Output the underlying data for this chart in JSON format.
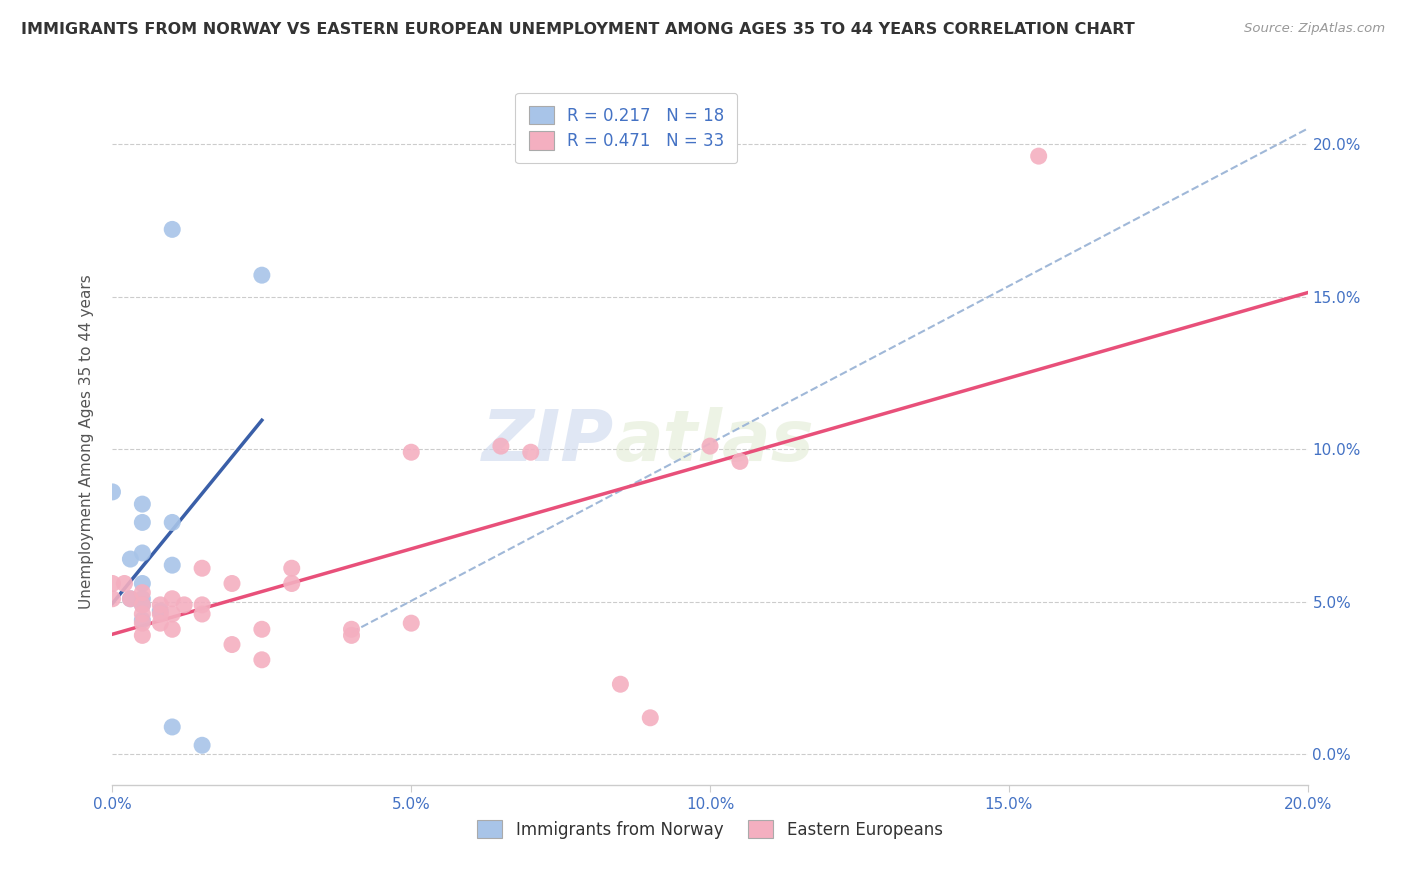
{
  "title": "IMMIGRANTS FROM NORWAY VS EASTERN EUROPEAN UNEMPLOYMENT AMONG AGES 35 TO 44 YEARS CORRELATION CHART",
  "source": "Source: ZipAtlas.com",
  "ylabel": "Unemployment Among Ages 35 to 44 years",
  "xlim": [
    0.0,
    0.2
  ],
  "ylim": [
    -0.01,
    0.215
  ],
  "xticks": [
    0.0,
    0.05,
    0.1,
    0.15,
    0.2
  ],
  "yticks": [
    0.0,
    0.05,
    0.1,
    0.15,
    0.2
  ],
  "watermark_zip": "ZIP",
  "watermark_atlas": "atlas",
  "norway_color": "#a8c4e8",
  "eastern_color": "#f4afc0",
  "norway_line_color": "#3a5fa8",
  "eastern_line_color": "#e8507a",
  "dashed_line_color": "#a0b8d8",
  "norway_points": [
    [
      0.01,
      0.172
    ],
    [
      0.025,
      0.157
    ],
    [
      0.0,
      0.086
    ],
    [
      0.005,
      0.082
    ],
    [
      0.005,
      0.076
    ],
    [
      0.01,
      0.076
    ],
    [
      0.005,
      0.066
    ],
    [
      0.003,
      0.064
    ],
    [
      0.01,
      0.062
    ],
    [
      0.005,
      0.056
    ],
    [
      0.005,
      0.051
    ],
    [
      0.003,
      0.051
    ],
    [
      0.005,
      0.049
    ],
    [
      0.008,
      0.047
    ],
    [
      0.005,
      0.044
    ],
    [
      0.01,
      0.009
    ],
    [
      0.015,
      0.003
    ]
  ],
  "eastern_points": [
    [
      0.0,
      0.056
    ],
    [
      0.0,
      0.051
    ],
    [
      0.002,
      0.056
    ],
    [
      0.003,
      0.051
    ],
    [
      0.005,
      0.053
    ],
    [
      0.005,
      0.049
    ],
    [
      0.005,
      0.046
    ],
    [
      0.005,
      0.043
    ],
    [
      0.005,
      0.039
    ],
    [
      0.008,
      0.049
    ],
    [
      0.008,
      0.046
    ],
    [
      0.008,
      0.043
    ],
    [
      0.01,
      0.051
    ],
    [
      0.01,
      0.046
    ],
    [
      0.01,
      0.041
    ],
    [
      0.012,
      0.049
    ],
    [
      0.015,
      0.049
    ],
    [
      0.015,
      0.046
    ],
    [
      0.015,
      0.061
    ],
    [
      0.02,
      0.056
    ],
    [
      0.02,
      0.036
    ],
    [
      0.025,
      0.041
    ],
    [
      0.025,
      0.031
    ],
    [
      0.03,
      0.061
    ],
    [
      0.03,
      0.056
    ],
    [
      0.04,
      0.041
    ],
    [
      0.04,
      0.039
    ],
    [
      0.05,
      0.043
    ],
    [
      0.05,
      0.099
    ],
    [
      0.065,
      0.101
    ],
    [
      0.07,
      0.099
    ],
    [
      0.085,
      0.023
    ],
    [
      0.09,
      0.012
    ],
    [
      0.1,
      0.101
    ],
    [
      0.105,
      0.096
    ],
    [
      0.155,
      0.196
    ]
  ]
}
